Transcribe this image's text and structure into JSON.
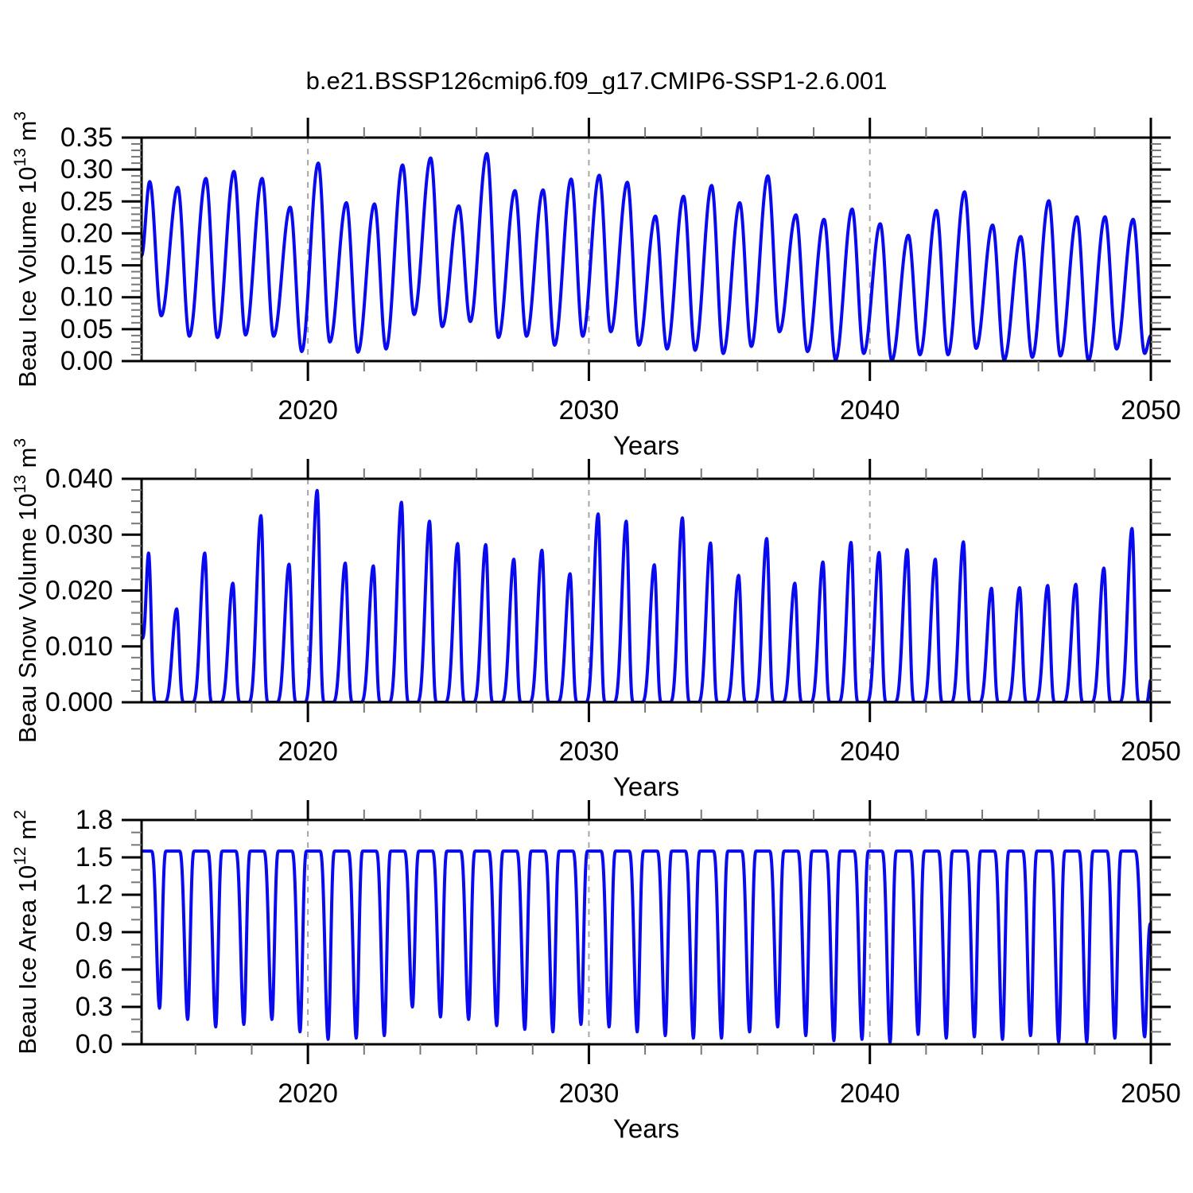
{
  "title": "b.e21.BSSP126cmip6.f09_g17.CMIP6-SSP1-2.6.001",
  "figure": {
    "background": "#ffffff",
    "line_color": "#0a0aee",
    "grid_color": "#a6a6a6",
    "axis_color": "#000000",
    "minor_tick_color": "#777777",
    "text_color": "#000000"
  },
  "chart_data": [
    {
      "type": "line",
      "name": "beau-ice-volume",
      "profile": "smooth",
      "ylabel": {
        "base": "Beau Ice Volume 10",
        "exp": "13",
        "unit": " m",
        "unit_exp": "3"
      },
      "xlabel": "Years",
      "ylim": [
        0,
        0.35
      ],
      "ytick_values": [
        0.0,
        0.05,
        0.1,
        0.15,
        0.2,
        0.25,
        0.3,
        0.35
      ],
      "ytick_labels": [
        "0.00",
        "0.05",
        "0.10",
        "0.15",
        "0.20",
        "0.25",
        "0.30",
        "0.35"
      ],
      "ytick_minor_step": 0.01,
      "xlim": [
        2014.08,
        2050.0
      ],
      "xtick_values": [
        2020,
        2030,
        2040,
        2050
      ],
      "xtick_labels": [
        "2020",
        "2030",
        "2040",
        "2050"
      ],
      "xtick_minor_start": 2016,
      "xtick_minor_step": 2,
      "gridlines_x": [
        2020,
        2030,
        2040
      ],
      "seasonal": {
        "peak_phase": 0.37,
        "trough_phase": 0.78,
        "peak_sharp": 1.0,
        "min_sharp": 1.0
      },
      "start_point": [
        2014.08,
        0.165
      ],
      "end_point": [
        2050.0,
        0.04
      ],
      "years": [
        2014,
        2015,
        2016,
        2017,
        2018,
        2019,
        2020,
        2021,
        2022,
        2023,
        2024,
        2025,
        2026,
        2027,
        2028,
        2029,
        2030,
        2031,
        2032,
        2033,
        2034,
        2035,
        2036,
        2037,
        2038,
        2039,
        2040,
        2041,
        2042,
        2043,
        2044,
        2045,
        2046,
        2047,
        2048,
        2049
      ],
      "winter_max": [
        0.281,
        0.272,
        0.286,
        0.297,
        0.286,
        0.241,
        0.31,
        0.248,
        0.246,
        0.307,
        0.318,
        0.243,
        0.325,
        0.267,
        0.268,
        0.285,
        0.291,
        0.28,
        0.227,
        0.258,
        0.275,
        0.248,
        0.29,
        0.229,
        0.222,
        0.238,
        0.215,
        0.197,
        0.236,
        0.265,
        0.213,
        0.195,
        0.251,
        0.226,
        0.226,
        0.222
      ],
      "summer_min": [
        0.071,
        0.039,
        0.037,
        0.041,
        0.039,
        0.015,
        0.03,
        0.014,
        0.019,
        0.073,
        0.054,
        0.062,
        0.037,
        0.039,
        0.025,
        0.039,
        0.046,
        0.025,
        0.019,
        0.017,
        0.012,
        0.023,
        0.046,
        0.015,
        0.002,
        0.012,
        0.001,
        0.01,
        0.01,
        0.02,
        0.002,
        0.006,
        0.008,
        0.001,
        0.019,
        0.012
      ]
    },
    {
      "type": "line",
      "name": "beau-snow-volume",
      "profile": "spike-zero",
      "ylabel": {
        "base": "Beau Snow Volume 10",
        "exp": "13",
        "unit": " m",
        "unit_exp": "3"
      },
      "xlabel": "Years",
      "ylim": [
        0,
        0.04
      ],
      "ytick_values": [
        0.0,
        0.01,
        0.02,
        0.03,
        0.04
      ],
      "ytick_labels": [
        "0.000",
        "0.010",
        "0.020",
        "0.030",
        "0.040"
      ],
      "ytick_minor_step": 0.002,
      "xlim": [
        2014.08,
        2050.0
      ],
      "xtick_values": [
        2020,
        2030,
        2040,
        2050
      ],
      "xtick_labels": [
        "2020",
        "2030",
        "2040",
        "2050"
      ],
      "xtick_minor_start": 2016,
      "xtick_minor_step": 2,
      "gridlines_x": [
        2020,
        2030,
        2040
      ],
      "seasonal": {
        "peak_phase": 0.33,
        "melt_zero_phase": 0.6,
        "freeze_start_phase": 0.86,
        "peak_sharp": 1.9
      },
      "start_point": [
        2014.08,
        0.0114
      ],
      "end_point": [
        2050.0,
        0.004
      ],
      "years": [
        2014,
        2015,
        2016,
        2017,
        2018,
        2019,
        2020,
        2021,
        2022,
        2023,
        2024,
        2025,
        2026,
        2027,
        2028,
        2029,
        2030,
        2031,
        2032,
        2033,
        2034,
        2035,
        2036,
        2037,
        2038,
        2039,
        2040,
        2041,
        2042,
        2043,
        2044,
        2045,
        2046,
        2047,
        2048,
        2049
      ],
      "winter_max": [
        0.0267,
        0.0167,
        0.0267,
        0.0213,
        0.0334,
        0.0247,
        0.0379,
        0.0249,
        0.0244,
        0.0358,
        0.0324,
        0.0284,
        0.0282,
        0.0256,
        0.0272,
        0.023,
        0.0337,
        0.0324,
        0.0246,
        0.033,
        0.0285,
        0.0227,
        0.0293,
        0.0213,
        0.0251,
        0.0286,
        0.0268,
        0.0273,
        0.0256,
        0.0287,
        0.0204,
        0.0205,
        0.0209,
        0.0211,
        0.024,
        0.0311
      ],
      "summer_min": [
        0,
        0,
        0,
        0,
        0,
        0,
        0,
        0,
        0,
        0,
        0,
        0,
        0,
        0,
        0,
        0,
        0,
        0,
        0,
        0,
        0,
        0,
        0,
        0,
        0,
        0,
        0,
        0,
        0,
        0,
        0,
        0,
        0,
        0,
        0,
        0
      ]
    },
    {
      "type": "line",
      "name": "beau-ice-area",
      "profile": "flat-top",
      "ylabel": {
        "base": "Beau Ice Area 10",
        "exp": "12",
        "unit": " m",
        "unit_exp": "2"
      },
      "xlabel": "Years",
      "ylim": [
        0,
        1.8
      ],
      "ytick_values": [
        0.0,
        0.3,
        0.6,
        0.9,
        1.2,
        1.5,
        1.8
      ],
      "ytick_labels": [
        "0.0",
        "0.3",
        "0.6",
        "0.9",
        "1.2",
        "1.5",
        "1.8"
      ],
      "ytick_minor_step": 0.1,
      "xlim": [
        2014.08,
        2050.0
      ],
      "xtick_values": [
        2020,
        2030,
        2040,
        2050
      ],
      "xtick_labels": [
        "2020",
        "2030",
        "2040",
        "2050"
      ],
      "xtick_minor_start": 2016,
      "xtick_minor_step": 2,
      "gridlines_x": [
        2020,
        2030,
        2040
      ],
      "winter_cap": 1.55,
      "seasonal": {
        "top_end_phase": 0.42,
        "min_phase": 0.72,
        "top_start_phase": 0.96,
        "min_sharp": 1.6
      },
      "end_point": [
        2050.0,
        0.97
      ],
      "years": [
        2014,
        2015,
        2016,
        2017,
        2018,
        2019,
        2020,
        2021,
        2022,
        2023,
        2024,
        2025,
        2026,
        2027,
        2028,
        2029,
        2030,
        2031,
        2032,
        2033,
        2034,
        2035,
        2036,
        2037,
        2038,
        2039,
        2040,
        2041,
        2042,
        2043,
        2044,
        2045,
        2046,
        2047,
        2048,
        2049
      ],
      "summer_min": [
        0.29,
        0.2,
        0.14,
        0.16,
        0.2,
        0.1,
        0.04,
        0.05,
        0.07,
        0.3,
        0.22,
        0.2,
        0.15,
        0.12,
        0.1,
        0.16,
        0.14,
        0.1,
        0.07,
        0.05,
        0.05,
        0.1,
        0.14,
        0.07,
        0.03,
        0.04,
        0.015,
        0.08,
        0.05,
        0.06,
        0.04,
        0.07,
        0.02,
        0.02,
        0.05,
        0.06
      ]
    }
  ]
}
